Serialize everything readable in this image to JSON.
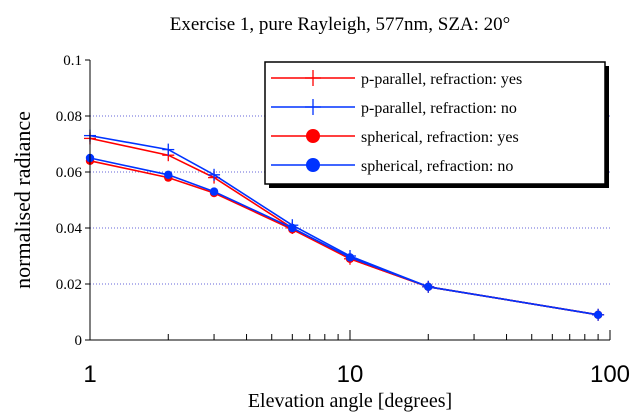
{
  "chart_data": {
    "type": "line",
    "title": "Exercise 1, pure Rayleigh, 577nm, SZA: 20°",
    "xlabel": "Elevation angle [degrees]",
    "ylabel": "normalised radiance",
    "xscale": "log",
    "xlim": [
      1,
      100
    ],
    "ylim": [
      0,
      0.1
    ],
    "x_ticks": [
      1,
      10,
      100
    ],
    "x_tick_labels": [
      "1",
      "10",
      "100"
    ],
    "y_ticks": [
      0,
      0.02,
      0.04,
      0.06,
      0.08,
      0.1
    ],
    "y_tick_labels": [
      "0",
      "0.02",
      "0.04",
      "0.06",
      "0.08",
      "0.1"
    ],
    "grid": "horizontal dotted",
    "legend_position": "top-right",
    "series": [
      {
        "name": "p-parallel, refraction: yes",
        "color": "#ff0000",
        "marker": "plus",
        "x": [
          1,
          2,
          3,
          6,
          10,
          20,
          90
        ],
        "y": [
          0.072,
          0.066,
          0.058,
          0.04,
          0.029,
          0.019,
          0.009
        ]
      },
      {
        "name": "p-parallel, refraction: no",
        "color": "#0033ff",
        "marker": "plus",
        "x": [
          1,
          2,
          3,
          6,
          10,
          20,
          90
        ],
        "y": [
          0.073,
          0.068,
          0.059,
          0.041,
          0.03,
          0.019,
          0.009
        ]
      },
      {
        "name": "spherical, refraction: yes",
        "color": "#ff0000",
        "marker": "circle",
        "x": [
          1,
          2,
          3,
          6,
          10,
          20,
          90
        ],
        "y": [
          0.064,
          0.058,
          0.0525,
          0.0395,
          0.029,
          0.019,
          0.009
        ]
      },
      {
        "name": "spherical, refraction: no",
        "color": "#0033ff",
        "marker": "circle",
        "x": [
          1,
          2,
          3,
          6,
          10,
          20,
          90
        ],
        "y": [
          0.065,
          0.059,
          0.053,
          0.04,
          0.0295,
          0.019,
          0.009
        ]
      }
    ]
  }
}
